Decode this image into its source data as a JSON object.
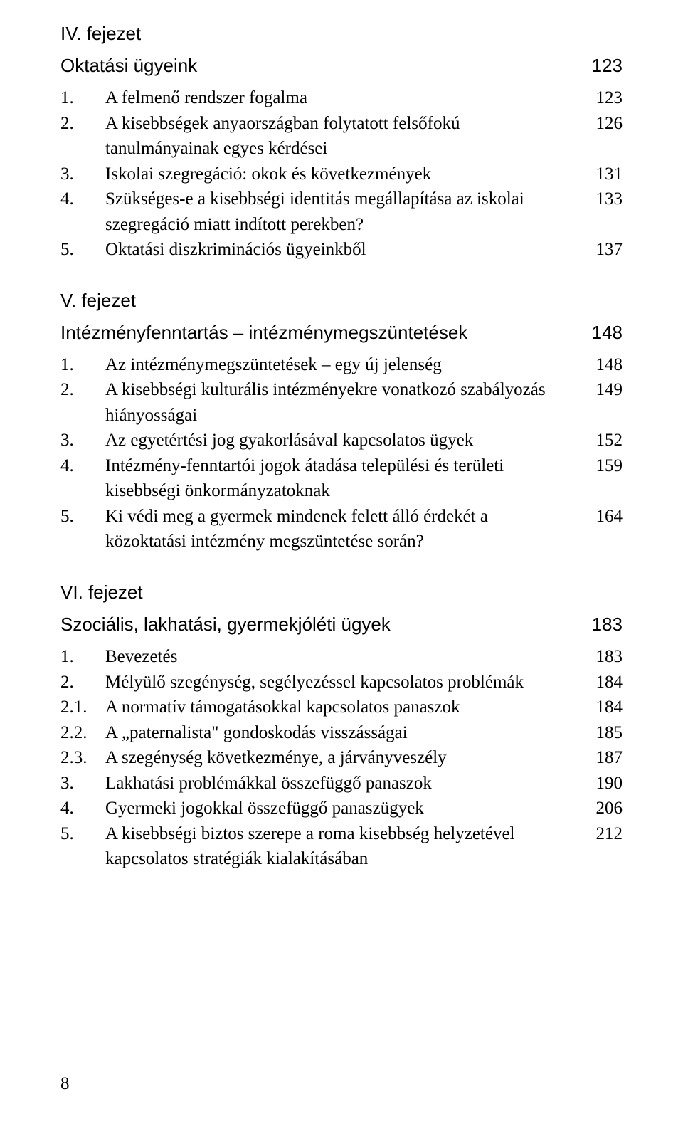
{
  "chapter4": {
    "heading": "IV. fejezet",
    "title": "Oktatási ügyeink",
    "title_page": "123",
    "items": [
      {
        "num": "1.",
        "text": "A felmenő rendszer fogalma",
        "page": "123"
      },
      {
        "num": "2.",
        "text": "A kisebbségek anyaországban folytatott felsőfokú tanulmányainak egyes kérdései",
        "page": "126"
      },
      {
        "num": "3.",
        "text": "Iskolai szegregáció: okok és következmények",
        "page": "131"
      },
      {
        "num": "4.",
        "text": "Szükséges-e a kisebbségi identitás megállapítása az iskolai szegregáció miatt indított perekben?",
        "page": "133"
      },
      {
        "num": "5.",
        "text": "Oktatási diszkriminációs ügyeinkből",
        "page": "137"
      }
    ]
  },
  "chapter5": {
    "heading": "V. fejezet",
    "title": "Intézményfenntartás – intézménymegszüntetések",
    "title_page": "148",
    "items": [
      {
        "num": "1.",
        "text": "Az intézménymegszüntetések – egy új jelenség",
        "page": "148"
      },
      {
        "num": "2.",
        "text": "A kisebbségi kulturális intézményekre vonatkozó szabályozás hiányosságai",
        "page": "149"
      },
      {
        "num": "3.",
        "text": "Az egyetértési jog gyakorlásával kapcsolatos ügyek",
        "page": "152"
      },
      {
        "num": "4.",
        "text": "Intézmény-fenntartói jogok átadása települési és területi kisebbségi önkormányzatoknak",
        "page": "159"
      },
      {
        "num": "5.",
        "text": "Ki védi meg a gyermek mindenek felett álló érdekét a közoktatási intézmény megszüntetése során?",
        "page": "164"
      }
    ]
  },
  "chapter6": {
    "heading": "VI. fejezet",
    "title": "Szociális, lakhatási, gyermekjóléti ügyek",
    "title_page": "183",
    "items": [
      {
        "num": "1.",
        "text": "Bevezetés",
        "page": "183"
      },
      {
        "num": "2.",
        "text": "Mélyülő szegénység, segélyezéssel kapcsolatos problémák",
        "page": "184"
      },
      {
        "num": "2.1.",
        "text": "A normatív támogatásokkal kapcsolatos panaszok",
        "page": "184"
      },
      {
        "num": "2.2.",
        "text": "A „paternalista\" gondoskodás visszásságai",
        "page": "185"
      },
      {
        "num": "2.3.",
        "text": "A szegénység következménye, a járványveszély",
        "page": "187"
      },
      {
        "num": "3.",
        "text": "Lakhatási problémákkal összefüggő panaszok",
        "page": "190"
      },
      {
        "num": "4.",
        "text": "Gyermeki jogokkal összefüggő panaszügyek",
        "page": "206"
      },
      {
        "num": "5.",
        "text": "A kisebbségi biztos szerepe a roma kisebbség helyzetével kapcsolatos stratégiák kialakításában",
        "page": "212"
      }
    ]
  },
  "page_number": "8"
}
